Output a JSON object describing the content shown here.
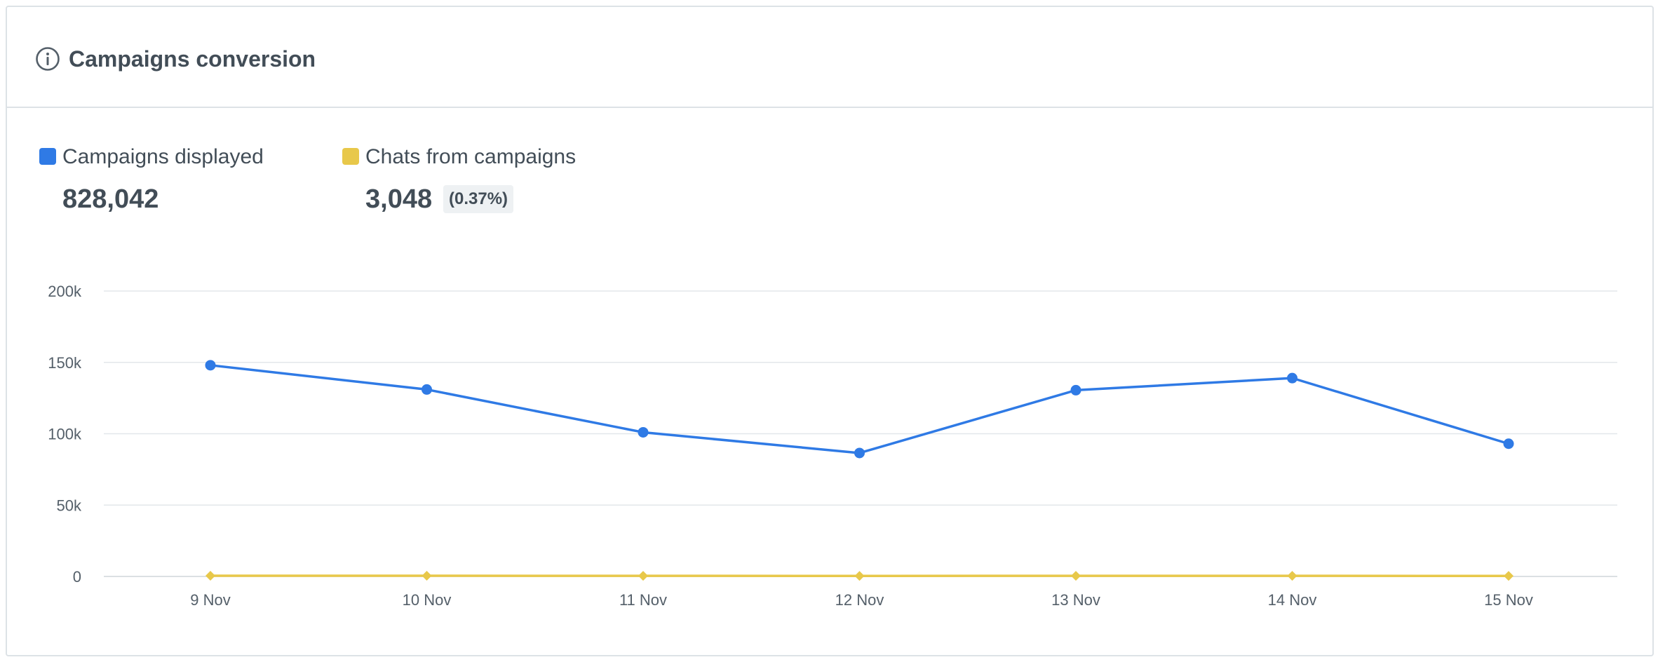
{
  "widget": {
    "title": "Campaigns conversion",
    "icon": "info-icon"
  },
  "legend": [
    {
      "name": "Campaigns displayed",
      "value": "828,042",
      "badge": "",
      "color": "#2f7ae5"
    },
    {
      "name": "Chats from campaigns",
      "value": "3,048",
      "badge": "(0.37%)",
      "color": "#e8c84a"
    }
  ],
  "chart_data": {
    "type": "line",
    "x": [
      "9 Nov",
      "10 Nov",
      "11 Nov",
      "12 Nov",
      "13 Nov",
      "14 Nov",
      "15 Nov"
    ],
    "yticks": [
      "0",
      "50k",
      "100k",
      "150k",
      "200k"
    ],
    "ylim": [
      0,
      200000
    ],
    "grid": true,
    "series": [
      {
        "name": "Campaigns displayed",
        "color": "#2f7ae5",
        "marker": "circle",
        "values": [
          148000,
          131000,
          101000,
          86500,
          130500,
          139000,
          93000
        ]
      },
      {
        "name": "Chats from campaigns",
        "color": "#e8c84a",
        "marker": "diamond",
        "values": [
          500,
          470,
          420,
          390,
          450,
          460,
          358
        ]
      }
    ]
  }
}
